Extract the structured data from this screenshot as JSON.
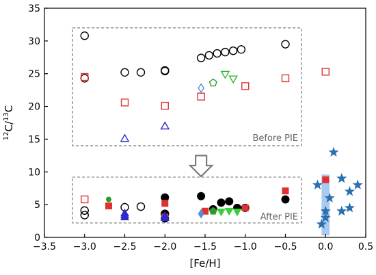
{
  "chart_data": {
    "type": "scatter",
    "xlabel": "[Fe/H]",
    "ylabel": {
      "base": "C/",
      "sup1": "12",
      "sup2": "13",
      "tail": "C"
    },
    "xlim": [
      -3.5,
      0.5
    ],
    "ylim": [
      0,
      35
    ],
    "x_ticks": [
      -3.5,
      -3.0,
      -2.5,
      -2.0,
      -1.5,
      -1.0,
      -0.5,
      0.0,
      0.5
    ],
    "y_ticks": [
      0,
      5,
      10,
      15,
      20,
      25,
      30,
      35
    ],
    "x_tick_labels": [
      "−3.5",
      "−3.0",
      "−2.5",
      "−2.0",
      "−1.5",
      "−1.0",
      "−0.5",
      "0.0",
      "0.5"
    ],
    "y_tick_labels": [
      "0",
      "5",
      "10",
      "15",
      "20",
      "25",
      "30",
      "35"
    ],
    "grid": false,
    "annotations": {
      "before_box": {
        "label": "Before PIE",
        "x_range": [
          -3.15,
          -0.3
        ],
        "y_range": [
          14,
          32
        ]
      },
      "after_box": {
        "label": "After PIE",
        "x_range": [
          -3.15,
          -0.3
        ],
        "y_range": [
          2.2,
          9.2
        ]
      },
      "arrow": {
        "x": -1.55,
        "y_from": 12.5,
        "y_to": 9.3
      },
      "solar_band": {
        "x_range": [
          -0.05,
          0.05
        ],
        "y_range": [
          0.3,
          9.6
        ],
        "color": "#a9cbf0"
      }
    },
    "series": [
      {
        "marker": "circle-open",
        "color": "#000000",
        "points": [
          [
            -3.0,
            30.8
          ],
          [
            -3.0,
            24.3
          ],
          [
            -2.5,
            25.2
          ],
          [
            -2.3,
            25.2
          ],
          [
            -2.0,
            25.5
          ],
          [
            -2.0,
            25.4
          ],
          [
            -1.55,
            27.4
          ],
          [
            -1.45,
            27.8
          ],
          [
            -1.35,
            28.1
          ],
          [
            -1.25,
            28.3
          ],
          [
            -1.15,
            28.5
          ],
          [
            -1.05,
            28.7
          ],
          [
            -0.5,
            29.5
          ]
        ]
      },
      {
        "marker": "square-open",
        "color": "#e03030",
        "points": [
          [
            -3.0,
            24.5
          ],
          [
            -2.5,
            20.6
          ],
          [
            -2.0,
            20.1
          ],
          [
            -1.55,
            21.5
          ],
          [
            -1.0,
            23.1
          ],
          [
            -0.5,
            24.3
          ],
          [
            0.0,
            25.3
          ]
        ]
      },
      {
        "marker": "triangle-open",
        "color": "#2a2ad0",
        "points": [
          [
            -2.5,
            15.0
          ],
          [
            -2.0,
            16.9
          ]
        ]
      },
      {
        "marker": "diamond-open",
        "color": "#5b8ad8",
        "points": [
          [
            -1.55,
            22.8
          ]
        ]
      },
      {
        "marker": "pentagon-open",
        "color": "#2e9a2e",
        "points": [
          [
            -1.4,
            23.6
          ]
        ]
      },
      {
        "marker": "triangle-down-open",
        "color": "#2cb82c",
        "points": [
          [
            -1.25,
            25.0
          ],
          [
            -1.15,
            24.3
          ]
        ]
      },
      {
        "marker": "circle-open",
        "color": "#000000",
        "points": [
          [
            -3.0,
            4.1
          ],
          [
            -3.0,
            3.4
          ],
          [
            -2.5,
            4.6
          ],
          [
            -2.3,
            4.7
          ],
          [
            -2.0,
            3.6
          ]
        ]
      },
      {
        "marker": "circle-filled",
        "color": "#000000",
        "points": [
          [
            -2.0,
            6.1
          ],
          [
            -2.0,
            3.6
          ],
          [
            -2.0,
            2.9
          ],
          [
            -1.55,
            6.3
          ],
          [
            -1.4,
            4.3
          ],
          [
            -1.3,
            5.3
          ],
          [
            -1.2,
            5.5
          ],
          [
            -1.1,
            4.5
          ],
          [
            -1.0,
            4.5
          ],
          [
            -0.5,
            5.8
          ]
        ]
      },
      {
        "marker": "square-open",
        "color": "#e03030",
        "points": [
          [
            -3.0,
            5.8
          ]
        ]
      },
      {
        "marker": "square-filled",
        "color": "#e03030",
        "points": [
          [
            -2.7,
            4.8
          ],
          [
            -2.0,
            5.2
          ],
          [
            -2.0,
            3.1
          ],
          [
            -1.5,
            4.0
          ],
          [
            -1.0,
            4.5
          ],
          [
            -0.5,
            7.1
          ],
          [
            0.0,
            8.8
          ]
        ]
      },
      {
        "marker": "circle-filled-small",
        "color": "#2e9a2e",
        "points": [
          [
            -2.7,
            5.8
          ]
        ]
      },
      {
        "marker": "triangle-filled",
        "color": "#2a2ad0",
        "points": [
          [
            -2.5,
            3.6
          ],
          [
            -2.5,
            3.3
          ],
          [
            -2.5,
            3.0
          ],
          [
            -2.0,
            3.2
          ],
          [
            -2.0,
            2.9
          ]
        ]
      },
      {
        "marker": "diamond-filled",
        "color": "#5b8ad8",
        "points": [
          [
            -1.55,
            3.6
          ]
        ]
      },
      {
        "marker": "pentagon-filled",
        "color": "#2e9a2e",
        "points": [
          [
            -1.4,
            4.0
          ]
        ]
      },
      {
        "marker": "triangle-down-filled",
        "color": "#3ccf3c",
        "points": [
          [
            -1.3,
            4.0
          ],
          [
            -1.2,
            4.1
          ],
          [
            -1.1,
            4.0
          ]
        ]
      },
      {
        "marker": "star",
        "color": "#2b6fae",
        "points": [
          [
            -0.1,
            8.0
          ],
          [
            0.1,
            13.0
          ],
          [
            0.2,
            9.0
          ],
          [
            0.3,
            7.0
          ],
          [
            0.4,
            8.0
          ],
          [
            0.05,
            6.0
          ],
          [
            0.0,
            4.0
          ],
          [
            0.0,
            3.0
          ],
          [
            -0.05,
            2.0
          ],
          [
            0.2,
            4.0
          ],
          [
            0.3,
            4.5
          ]
        ]
      }
    ]
  }
}
